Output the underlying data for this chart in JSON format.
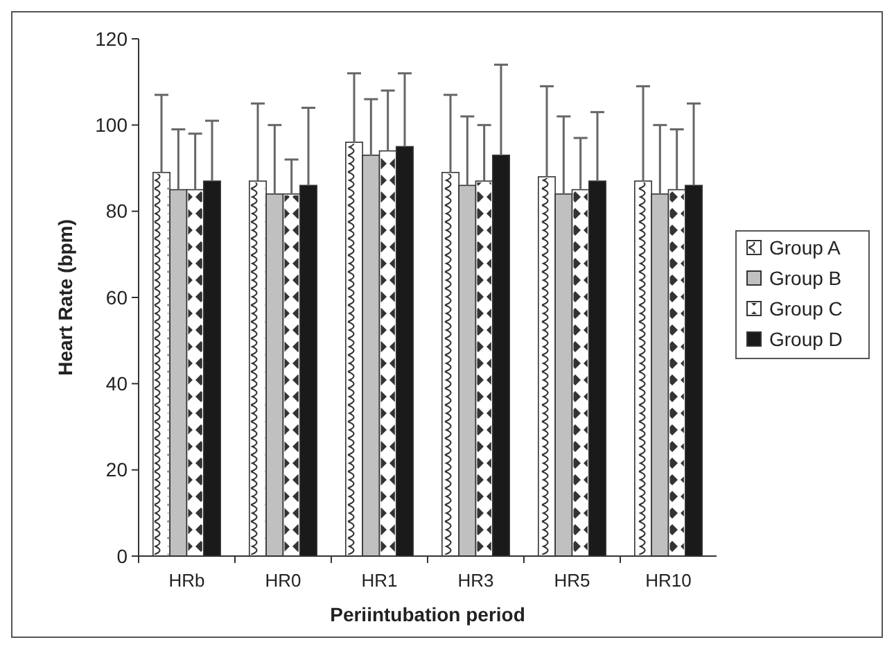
{
  "chart_data": {
    "type": "bar",
    "xlabel": "Periintubation period",
    "ylabel": "Heart Rate (bpm)",
    "categories": [
      "HRb",
      "HR0",
      "HR1",
      "HR3",
      "HR5",
      "HR10"
    ],
    "series": [
      {
        "name": "Group A",
        "color": "#ffffff",
        "values": [
          89,
          87,
          96,
          89,
          88,
          87
        ],
        "errors": [
          [
            89,
            107
          ],
          [
            87,
            105
          ],
          [
            96,
            112
          ],
          [
            89,
            107
          ],
          [
            88,
            109
          ],
          [
            87,
            109
          ]
        ]
      },
      {
        "name": "Group B",
        "color": "#c0c0c0",
        "values": [
          85,
          84,
          93,
          86,
          84,
          84
        ],
        "errors": [
          [
            85,
            99
          ],
          [
            84,
            100
          ],
          [
            93,
            106
          ],
          [
            86,
            102
          ],
          [
            84,
            102
          ],
          [
            84,
            100
          ]
        ]
      },
      {
        "name": "Group C",
        "color": "#ffffff",
        "values": [
          85,
          84,
          94,
          87,
          85,
          85
        ],
        "errors": [
          [
            85,
            98
          ],
          [
            84,
            92
          ],
          [
            94,
            108
          ],
          [
            87,
            100
          ],
          [
            85,
            97
          ],
          [
            85,
            99
          ]
        ]
      },
      {
        "name": "Group D",
        "color": "#1a1a1a",
        "values": [
          87,
          86,
          95,
          93,
          87,
          86
        ],
        "errors": [
          [
            87,
            101
          ],
          [
            86,
            104
          ],
          [
            95,
            112
          ],
          [
            93,
            114
          ],
          [
            87,
            103
          ],
          [
            86,
            105
          ]
        ]
      }
    ],
    "ylim": [
      0,
      120
    ],
    "yticks": [
      0,
      20,
      40,
      60,
      80,
      100,
      120
    ],
    "grid": false,
    "legend": "right"
  }
}
